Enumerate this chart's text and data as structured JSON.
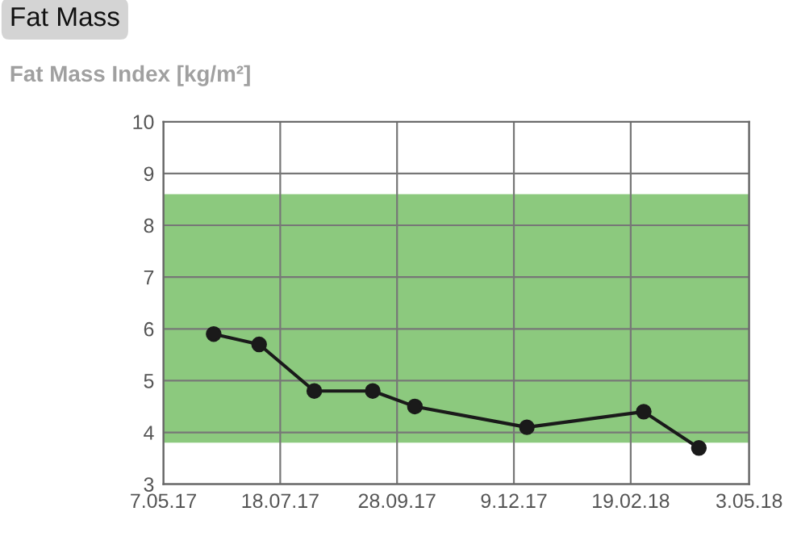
{
  "chart_data": {
    "type": "line",
    "title": "Fat Mass",
    "subtitle": "Fat Mass Index [kg/m²]",
    "x": [
      "2017-06-07",
      "2017-07-05",
      "2017-08-08",
      "2017-09-13",
      "2017-10-09",
      "2017-12-17",
      "2018-02-27",
      "2018-04-02"
    ],
    "series": [
      {
        "color": "#1a1a1a",
        "values": [
          5.9,
          5.7,
          4.8,
          4.8,
          4.5,
          4.1,
          4.4,
          3.7
        ]
      }
    ],
    "xlim": [
      "2017-05-07",
      "2018-05-03"
    ],
    "xticks": [
      {
        "value": "2017-05-07",
        "label": "7.05.17"
      },
      {
        "value": "2017-07-18",
        "label": "18.07.17"
      },
      {
        "value": "2017-09-28",
        "label": "28.09.17"
      },
      {
        "value": "2017-12-09",
        "label": "9.12.17"
      },
      {
        "value": "2018-02-19",
        "label": "19.02.18"
      },
      {
        "value": "2018-05-03",
        "label": "3.05.18"
      }
    ],
    "ylim": [
      3,
      10
    ],
    "yticks": [
      3,
      4,
      5,
      6,
      7,
      8,
      9,
      10
    ],
    "bands": [
      {
        "axis": "y",
        "from": 3.8,
        "to": 8.6,
        "color": "#8cc97e"
      }
    ],
    "grid": true,
    "marker": "circle",
    "line_style": "solid",
    "legend": false
  }
}
